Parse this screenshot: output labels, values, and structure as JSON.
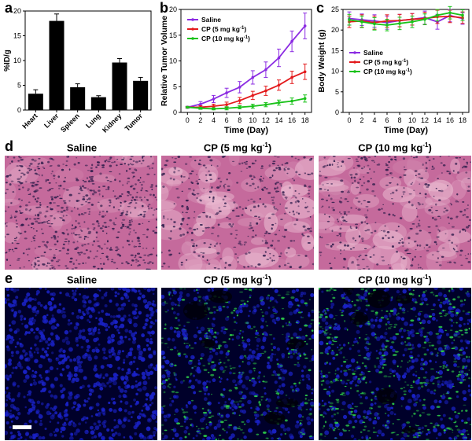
{
  "panels": {
    "a": "a",
    "b": "b",
    "c": "c",
    "d": "d",
    "e": "e"
  },
  "chart_data": [
    {
      "id": "a",
      "type": "bar",
      "ylabel": "%ID/g",
      "categories": [
        "Heart",
        "Liver",
        "Spleen",
        "Lung",
        "Kidney",
        "Tumor"
      ],
      "values": [
        3.3,
        18.0,
        4.6,
        2.6,
        9.6,
        5.9
      ],
      "errors": [
        0.8,
        1.4,
        0.7,
        0.3,
        0.8,
        0.7
      ],
      "ylim": [
        0,
        20
      ],
      "yticks": [
        0,
        5,
        10,
        15,
        20
      ],
      "bar_color": "#000000"
    },
    {
      "id": "b",
      "type": "line",
      "xlabel": "Time (Day)",
      "ylabel": "Relative Tumor Volume",
      "x": [
        0,
        2,
        4,
        6,
        8,
        10,
        12,
        14,
        16,
        18
      ],
      "xlim": [
        -1,
        19
      ],
      "ylim": [
        0,
        20
      ],
      "yticks": [
        0,
        5,
        10,
        15,
        20
      ],
      "series": [
        {
          "name": "Saline",
          "sup": "",
          "color": "#8b2be2",
          "values": [
            1.0,
            1.6,
            2.6,
            3.8,
            4.9,
            6.8,
            8.3,
            10.6,
            13.8,
            16.8
          ],
          "errors": [
            0.2,
            0.5,
            0.7,
            0.9,
            1.1,
            1.3,
            1.5,
            1.7,
            2.0,
            2.5
          ]
        },
        {
          "name": "CP (5 mg kg",
          "sup": "-1",
          "close": ")",
          "color": "#e31a1c",
          "values": [
            1.0,
            1.0,
            1.2,
            1.5,
            2.3,
            3.3,
            4.2,
            5.3,
            6.8,
            7.9
          ],
          "errors": [
            0.1,
            0.3,
            0.4,
            0.5,
            0.6,
            0.8,
            0.9,
            1.0,
            1.2,
            1.5
          ]
        },
        {
          "name": "CP (10 mg kg",
          "sup": "-1",
          "close": ")",
          "color": "#19c219",
          "values": [
            1.0,
            0.8,
            0.7,
            0.8,
            1.0,
            1.2,
            1.5,
            1.9,
            2.2,
            2.7
          ],
          "errors": [
            0.1,
            0.2,
            0.2,
            0.3,
            0.3,
            0.4,
            0.4,
            0.5,
            0.6,
            0.7
          ]
        }
      ]
    },
    {
      "id": "c",
      "type": "line",
      "xlabel": "Time (Day)",
      "ylabel": "Body Weight (g)",
      "x": [
        0,
        2,
        4,
        6,
        8,
        10,
        12,
        14,
        16,
        18
      ],
      "xlim": [
        -1,
        19
      ],
      "ylim": [
        0,
        25
      ],
      "yticks": [
        0,
        5,
        10,
        15,
        20,
        25
      ],
      "series": [
        {
          "name": "Saline",
          "sup": "",
          "color": "#8b2be2",
          "values": [
            22.8,
            22.5,
            22.2,
            21.8,
            22.3,
            22.6,
            23.0,
            22.0,
            23.5,
            22.8
          ],
          "errors": [
            1.6,
            1.4,
            1.5,
            1.6,
            1.5,
            1.4,
            1.6,
            1.8,
            1.5,
            1.4
          ]
        },
        {
          "name": "CP (5 mg kg",
          "sup": "-1",
          "close": ")",
          "color": "#e31a1c",
          "values": [
            22.0,
            22.2,
            21.8,
            22.2,
            22.3,
            22.6,
            22.8,
            23.2,
            23.3,
            23.0
          ],
          "errors": [
            1.4,
            1.5,
            1.6,
            1.5,
            1.5,
            1.4,
            1.5,
            1.6,
            1.5,
            1.4
          ]
        },
        {
          "name": "CP (10 mg kg",
          "sup": "-1",
          "close": ")",
          "color": "#19c219",
          "values": [
            22.5,
            22.0,
            21.5,
            21.2,
            21.6,
            22.0,
            22.6,
            23.6,
            24.2,
            23.6
          ],
          "errors": [
            1.3,
            1.4,
            1.5,
            1.4,
            1.5,
            1.4,
            1.3,
            1.4,
            1.5,
            1.3
          ]
        }
      ]
    }
  ],
  "row_d": {
    "titles": [
      {
        "main": "Saline",
        "sup": "",
        "close": ""
      },
      {
        "main": "CP (5 mg kg",
        "sup": "-1",
        "close": ")"
      },
      {
        "main": "CP (10 mg kg",
        "sup": "-1",
        "close": ")"
      }
    ],
    "colors": {
      "base": "#c56a9c",
      "pale": "#e9b8cf",
      "nuclei": "#2b1b4a"
    }
  },
  "row_e": {
    "titles": [
      {
        "main": "Saline",
        "sup": "",
        "close": ""
      },
      {
        "main": "CP (5 mg kg",
        "sup": "-1",
        "close": ")"
      },
      {
        "main": "CP (10 mg kg",
        "sup": "-1",
        "close": ")"
      }
    ],
    "colors": {
      "base": "#00002a",
      "nuclei": "#1a22c8",
      "signal": "#2fd84a"
    }
  }
}
